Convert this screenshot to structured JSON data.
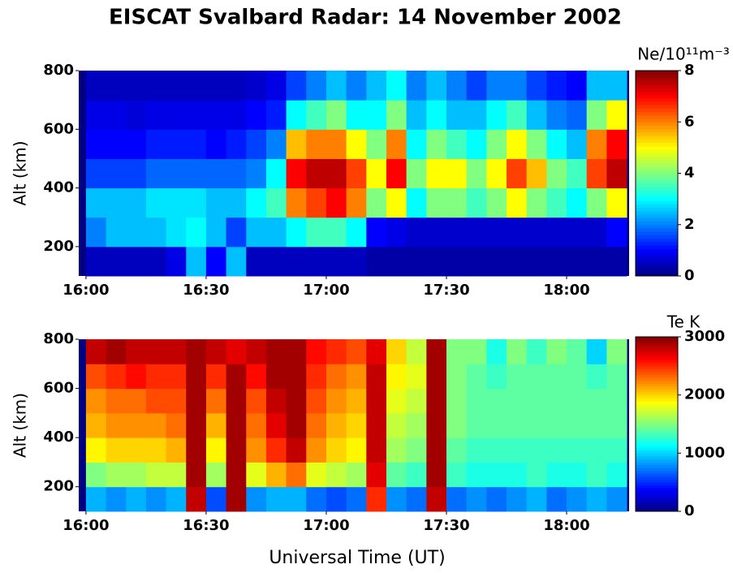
{
  "chart_data": [
    {
      "type": "heatmap",
      "title": "EISCAT Svalbard Radar: 14 November 2002",
      "ylabel": "Alt (km)",
      "colormap": "jet",
      "xlim": [
        15.97,
        18.26
      ],
      "xticks": [
        {
          "value": 16,
          "label": "16:00"
        },
        {
          "value": 16.5,
          "label": "16:30"
        },
        {
          "value": 17,
          "label": "17:00"
        },
        {
          "value": 17.5,
          "label": "17:30"
        },
        {
          "value": 18,
          "label": "18:00"
        }
      ],
      "ylim": [
        100,
        800
      ],
      "yticks": [
        200,
        400,
        600,
        800
      ],
      "x": [
        16,
        16.0833,
        16.1667,
        16.25,
        16.3333,
        16.4167,
        16.5,
        16.5833,
        16.6667,
        16.75,
        16.8333,
        16.9167,
        17,
        17.0833,
        17.1667,
        17.25,
        17.3333,
        17.4167,
        17.5,
        17.5833,
        17.6667,
        17.75,
        17.8333,
        17.9167,
        18,
        18.0833,
        18.1667,
        18.25
      ],
      "y": [
        100,
        200,
        300,
        400,
        500,
        600,
        700,
        800
      ],
      "values": [
        [
          0.5,
          2,
          2.5,
          1.5,
          1,
          0.8,
          0.5
        ],
        [
          0.5,
          2.5,
          2.5,
          1.5,
          1,
          0.8,
          0.5
        ],
        [
          0.5,
          2.5,
          2.5,
          1.5,
          1,
          0.7,
          0.5
        ],
        [
          0.5,
          2.5,
          2.8,
          1.8,
          1.2,
          0.8,
          0.5
        ],
        [
          0.8,
          2.8,
          2.8,
          1.8,
          1.2,
          0.8,
          0.5
        ],
        [
          2.5,
          3,
          2.8,
          1.8,
          1.2,
          0.8,
          0.5
        ],
        [
          1,
          2.5,
          2.5,
          1.8,
          1,
          0.8,
          0.5
        ],
        [
          2.5,
          1.5,
          2.5,
          1.8,
          1.2,
          0.8,
          0.5
        ],
        [
          0.5,
          2.5,
          3,
          2,
          1.5,
          1,
          0.6
        ],
        [
          0.5,
          2.5,
          3.5,
          3,
          2,
          1.2,
          0.8
        ],
        [
          0.5,
          3,
          6,
          7,
          5.5,
          3,
          1.5
        ],
        [
          0.5,
          3.5,
          6.5,
          7.5,
          6,
          3.5,
          2
        ],
        [
          0.5,
          3.5,
          7,
          7.5,
          6,
          4,
          2.5
        ],
        [
          0.5,
          3,
          6,
          6.5,
          5,
          3,
          2
        ],
        [
          0.3,
          1,
          4,
          5,
          4,
          3,
          2.5
        ],
        [
          0.3,
          0.8,
          5,
          7,
          6,
          4,
          3
        ],
        [
          0.3,
          0.6,
          3,
          4,
          3,
          2.5,
          2
        ],
        [
          0.3,
          0.6,
          4,
          5,
          4,
          3,
          2.5
        ],
        [
          0.3,
          0.6,
          4,
          5,
          3.5,
          2.5,
          2
        ],
        [
          0.3,
          0.6,
          3.5,
          4,
          3,
          2.5,
          1.5
        ],
        [
          0.3,
          0.6,
          4,
          5,
          4,
          3,
          2
        ],
        [
          0.3,
          0.6,
          5,
          6.5,
          5,
          3.5,
          2
        ],
        [
          0.3,
          0.6,
          4,
          5.5,
          4,
          2.5,
          1.5
        ],
        [
          0.3,
          0.6,
          3.5,
          4,
          3,
          2,
          1.2
        ],
        [
          0.3,
          0.6,
          3,
          3.5,
          2.5,
          1.8,
          1
        ],
        [
          0.3,
          0.6,
          4,
          6.5,
          6,
          4,
          2.5
        ],
        [
          0.3,
          1,
          5,
          7.5,
          7,
          5,
          2.5
        ]
      ],
      "colorbar": {
        "label": "Ne/10¹¹m⁻³",
        "lim": [
          0,
          8
        ],
        "ticks": [
          0,
          2,
          4,
          6,
          8
        ]
      }
    },
    {
      "type": "heatmap",
      "ylabel": "Alt (km)",
      "xlabel": "Universal Time (UT)",
      "colormap": "jet",
      "xlim": [
        15.97,
        18.26
      ],
      "xticks": [
        {
          "value": 16,
          "label": "16:00"
        },
        {
          "value": 16.5,
          "label": "16:30"
        },
        {
          "value": 17,
          "label": "17:00"
        },
        {
          "value": 17.5,
          "label": "17:30"
        },
        {
          "value": 18,
          "label": "18:00"
        }
      ],
      "ylim": [
        100,
        800
      ],
      "yticks": [
        200,
        400,
        600,
        800
      ],
      "x": [
        16,
        16.0833,
        16.1667,
        16.25,
        16.3333,
        16.4167,
        16.5,
        16.5833,
        16.6667,
        16.75,
        16.8333,
        16.9167,
        17,
        17.0833,
        17.1667,
        17.25,
        17.3333,
        17.4167,
        17.5,
        17.5833,
        17.6667,
        17.75,
        17.8333,
        17.9167,
        18,
        18.0833,
        18.1667,
        18.25
      ],
      "y": [
        100,
        200,
        300,
        400,
        500,
        600,
        700,
        800
      ],
      "values": [
        [
          900,
          1500,
          1900,
          2100,
          2200,
          2400,
          2800
        ],
        [
          800,
          1600,
          2000,
          2200,
          2300,
          2500,
          2900
        ],
        [
          900,
          1600,
          2000,
          2200,
          2300,
          2600,
          2800
        ],
        [
          800,
          1700,
          2000,
          2200,
          2400,
          2500,
          2800
        ],
        [
          900,
          1700,
          2100,
          2300,
          2400,
          2500,
          2800
        ],
        [
          2800,
          2900,
          2900,
          2900,
          2900,
          2900,
          2900
        ],
        [
          600,
          1600,
          1900,
          2100,
          2300,
          2500,
          2800
        ],
        [
          2900,
          2900,
          2900,
          2900,
          2900,
          2900,
          2700
        ],
        [
          800,
          1800,
          2200,
          2300,
          2400,
          2600,
          2800
        ],
        [
          900,
          2100,
          2500,
          2700,
          2800,
          2900,
          2900
        ],
        [
          900,
          2300,
          2800,
          2900,
          2900,
          2900,
          2900
        ],
        [
          700,
          1800,
          2200,
          2300,
          2400,
          2500,
          2600
        ],
        [
          600,
          1700,
          2000,
          2100,
          2200,
          2300,
          2500
        ],
        [
          700,
          1600,
          1900,
          2000,
          2100,
          2200,
          2400
        ],
        [
          2500,
          2700,
          2800,
          2800,
          2800,
          2800,
          2700
        ],
        [
          800,
          1400,
          1600,
          1700,
          1800,
          1900,
          2000
        ],
        [
          700,
          1300,
          1500,
          1600,
          1700,
          1800,
          1700
        ],
        [
          2800,
          2900,
          2900,
          2900,
          2900,
          2900,
          2900
        ],
        [
          700,
          1300,
          1400,
          1500,
          1500,
          1500,
          1500
        ],
        [
          800,
          1200,
          1300,
          1400,
          1400,
          1400,
          1500
        ],
        [
          700,
          1200,
          1300,
          1400,
          1400,
          1300,
          1200
        ],
        [
          800,
          1200,
          1300,
          1400,
          1400,
          1400,
          1500
        ],
        [
          900,
          1300,
          1300,
          1400,
          1400,
          1400,
          1300
        ],
        [
          700,
          1200,
          1300,
          1400,
          1400,
          1400,
          1500
        ],
        [
          800,
          1200,
          1300,
          1400,
          1400,
          1400,
          1400
        ],
        [
          900,
          1300,
          1300,
          1400,
          1400,
          1300,
          1000
        ],
        [
          800,
          1200,
          1300,
          1400,
          1400,
          1400,
          1500
        ]
      ],
      "colorbar": {
        "label": "Te K",
        "lim": [
          0,
          3000
        ],
        "ticks": [
          0,
          1000,
          2000,
          3000
        ]
      }
    }
  ]
}
